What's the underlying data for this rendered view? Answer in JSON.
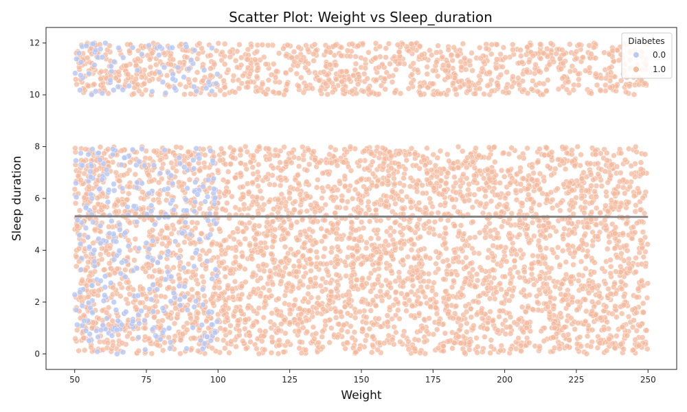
{
  "chart_data": {
    "type": "scatter",
    "title": "Scatter Plot: Weight vs Sleep_duration",
    "xlabel": "Weight",
    "ylabel": "Sleep duration",
    "xlim": [
      40,
      260
    ],
    "ylim": [
      -0.6,
      12.6
    ],
    "xticks": [
      50,
      75,
      100,
      125,
      150,
      175,
      200,
      225,
      250
    ],
    "yticks": [
      0,
      2,
      4,
      6,
      8,
      10,
      12
    ],
    "grid": false,
    "legend": {
      "title": "Diabetes",
      "placement": "top-right",
      "entries": [
        {
          "label": "0.0",
          "color": "#b9c9f5"
        },
        {
          "label": "1.0",
          "color": "#f4b89c"
        }
      ]
    },
    "series": [
      {
        "name": "0.0",
        "color": "#b9c9f5",
        "x_range": [
          50,
          100
        ],
        "y_bands": [
          [
            0,
            8
          ],
          [
            10,
            12
          ]
        ],
        "note_density": "sparse"
      },
      {
        "name": "1.0",
        "color": "#f4b89c",
        "x_range": [
          50,
          250
        ],
        "y_bands": [
          [
            0,
            8
          ],
          [
            10,
            12
          ]
        ],
        "note_density": "dense"
      }
    ],
    "trend_line": {
      "color": "#808080",
      "points": [
        [
          50,
          5.31
        ],
        [
          250,
          5.29
        ]
      ]
    }
  }
}
